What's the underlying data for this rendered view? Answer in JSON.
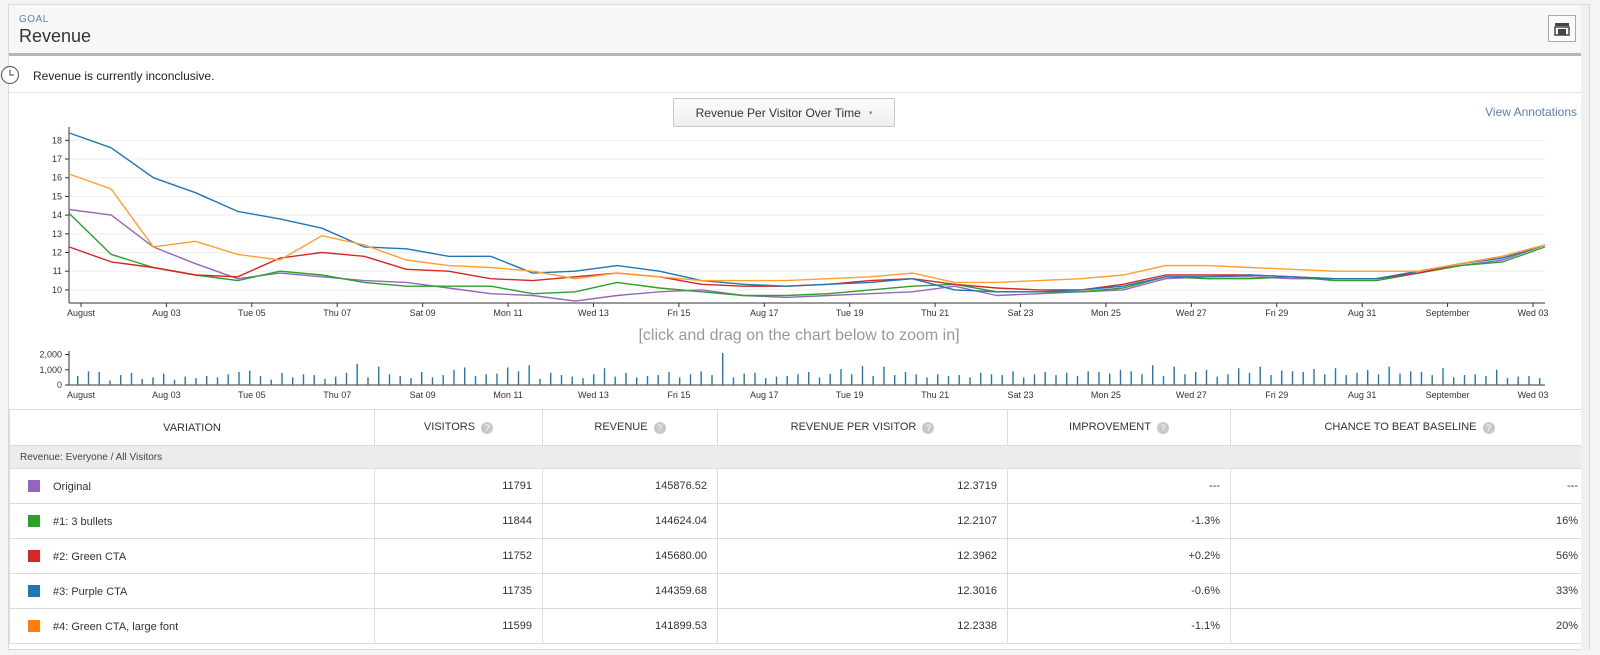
{
  "goal": {
    "label": "GOAL",
    "title": "Revenue",
    "header_icon": "layout-icon"
  },
  "status": {
    "icon": "clock-icon",
    "text": "Revenue is currently inconclusive."
  },
  "chart_select": {
    "label": "Revenue Per Visitor Over Time",
    "caret": "▾"
  },
  "view_annotations": "View Annotations",
  "zoom_hint": "[click and drag on the chart below to zoom in]",
  "chart_data": [
    {
      "type": "line",
      "x_labels": [
        "August",
        "Aug 03",
        "Tue 05",
        "Thu 07",
        "Sat 09",
        "Mon 11",
        "Wed 13",
        "Fri 15",
        "Aug 17",
        "Tue 19",
        "Thu 21",
        "Sat 23",
        "Mon 25",
        "Wed 27",
        "Fri 29",
        "Aug 31",
        "September",
        "Wed 03"
      ],
      "y_ticks": [
        10,
        11,
        12,
        13,
        14,
        15,
        16,
        17,
        18
      ],
      "ylim": [
        9.3,
        18.5
      ],
      "grid": true,
      "x": [
        0,
        1,
        2,
        3,
        4,
        5,
        6,
        7,
        8,
        9,
        10,
        11,
        12,
        13,
        14,
        15,
        16,
        17,
        18,
        19,
        20,
        21,
        22,
        23,
        24,
        25,
        26,
        27,
        28,
        29,
        30,
        31,
        32,
        33,
        34,
        35
      ],
      "series": [
        {
          "name": "Original",
          "color": "#9467bd",
          "values": [
            14.3,
            14.0,
            12.3,
            11.4,
            10.6,
            10.9,
            10.7,
            10.5,
            10.4,
            10.1,
            9.8,
            9.7,
            9.4,
            9.7,
            9.9,
            10.0,
            9.7,
            9.6,
            9.7,
            9.8,
            9.9,
            10.2,
            9.7,
            9.8,
            9.9,
            10.0,
            10.6,
            10.7,
            10.7,
            10.6,
            10.6,
            10.6,
            10.9,
            11.3,
            11.6,
            12.4
          ]
        },
        {
          "name": "#1: 3 bullets",
          "color": "#2ca02c",
          "values": [
            14.1,
            11.9,
            11.2,
            10.8,
            10.5,
            11.0,
            10.8,
            10.4,
            10.2,
            10.2,
            10.2,
            9.8,
            9.9,
            10.4,
            10.1,
            9.9,
            9.7,
            9.7,
            9.8,
            10.0,
            10.2,
            10.3,
            9.9,
            9.9,
            9.9,
            10.1,
            10.7,
            10.6,
            10.6,
            10.7,
            10.5,
            10.5,
            10.9,
            11.3,
            11.5,
            12.3
          ]
        },
        {
          "name": "#2: Green CTA",
          "color": "#d62728",
          "values": [
            12.3,
            11.5,
            11.2,
            10.8,
            10.7,
            11.7,
            12.0,
            11.8,
            11.1,
            11.0,
            10.6,
            10.5,
            10.7,
            10.9,
            10.7,
            10.3,
            10.2,
            10.2,
            10.3,
            10.5,
            10.6,
            10.3,
            10.1,
            10.0,
            10.0,
            10.3,
            10.8,
            10.8,
            10.8,
            10.7,
            10.6,
            10.6,
            10.9,
            11.4,
            11.8,
            12.4
          ]
        },
        {
          "name": "#3: Purple CTA",
          "color": "#1f77b4",
          "values": [
            18.4,
            17.6,
            16.0,
            15.2,
            14.2,
            13.8,
            13.3,
            12.3,
            12.2,
            11.8,
            11.8,
            10.9,
            11.0,
            11.3,
            11.0,
            10.5,
            10.3,
            10.2,
            10.3,
            10.4,
            10.6,
            10.0,
            9.9,
            9.9,
            10.0,
            10.2,
            10.7,
            10.7,
            10.8,
            10.7,
            10.6,
            10.6,
            11.0,
            11.4,
            11.7,
            12.4
          ]
        },
        {
          "name": "#4: Green CTA, large font",
          "color": "#ff9f2e",
          "values": [
            16.2,
            15.4,
            12.3,
            12.6,
            11.9,
            11.6,
            12.9,
            12.4,
            11.6,
            11.3,
            11.2,
            11.0,
            10.6,
            10.9,
            10.7,
            10.5,
            10.5,
            10.5,
            10.6,
            10.7,
            10.9,
            10.4,
            10.4,
            10.5,
            10.6,
            10.8,
            11.3,
            11.3,
            11.2,
            11.1,
            11.0,
            11.0,
            11.0,
            11.4,
            11.8,
            12.4
          ]
        }
      ]
    },
    {
      "type": "bar",
      "title": "",
      "y_ticks": [
        "0",
        "1,000",
        "2,000"
      ],
      "ylim": [
        0,
        2100
      ],
      "color": "#1f77b4",
      "values": [
        600,
        900,
        850,
        300,
        650,
        800,
        400,
        500,
        750,
        350,
        550,
        450,
        600,
        500,
        700,
        850,
        950,
        600,
        350,
        800,
        500,
        700,
        650,
        400,
        550,
        800,
        1400,
        500,
        1200,
        700,
        600,
        450,
        850,
        500,
        650,
        1000,
        1150,
        600,
        700,
        750,
        1150,
        900,
        1300,
        400,
        800,
        650,
        550,
        450,
        700,
        1100,
        550,
        800,
        500,
        600,
        650,
        850,
        500,
        700,
        900,
        650,
        2100,
        500,
        750,
        800,
        450,
        550,
        600,
        700,
        850,
        500,
        750,
        1050,
        700,
        1250,
        600,
        1200,
        650,
        850,
        700,
        500,
        700,
        600,
        650,
        500,
        800,
        700,
        650,
        900,
        500,
        700,
        850,
        650,
        800,
        600,
        900,
        850,
        750,
        1000,
        900,
        700,
        1300,
        600,
        1200,
        700,
        850,
        1000,
        550,
        700,
        1100,
        800,
        1200,
        650,
        950,
        900,
        850,
        1050,
        700,
        1100,
        650,
        800,
        1000,
        700,
        1200,
        750,
        900,
        850,
        650,
        1100,
        500,
        650,
        700,
        600,
        1000,
        450,
        550,
        600,
        450
      ]
    }
  ],
  "table": {
    "headers": [
      "VARIATION",
      "VISITORS",
      "REVENUE",
      "REVENUE PER VISITOR",
      "IMPROVEMENT",
      "CHANCE TO BEAT BASELINE"
    ],
    "help_icon": "?",
    "segment": "Revenue: Everyone / All Visitors",
    "rows": [
      {
        "name": "Original",
        "color": "#9467bd",
        "visitors": "11791",
        "revenue": "145876.52",
        "rpv": "12.3719",
        "improvement": "---",
        "chance": "---"
      },
      {
        "name": "#1: 3 bullets",
        "color": "#2ca02c",
        "visitors": "11844",
        "revenue": "144624.04",
        "rpv": "12.2107",
        "improvement": "-1.3%",
        "chance": "16%"
      },
      {
        "name": "#2: Green CTA",
        "color": "#d62728",
        "visitors": "11752",
        "revenue": "145680.00",
        "rpv": "12.3962",
        "improvement": "+0.2%",
        "chance": "56%"
      },
      {
        "name": "#3: Purple CTA",
        "color": "#1f77b4",
        "visitors": "11735",
        "revenue": "144359.68",
        "rpv": "12.3016",
        "improvement": "-0.6%",
        "chance": "33%"
      },
      {
        "name": "#4: Green CTA, large font",
        "color": "#ff7f0e",
        "visitors": "11599",
        "revenue": "141899.53",
        "rpv": "12.2338",
        "improvement": "-1.1%",
        "chance": "20%"
      }
    ]
  }
}
